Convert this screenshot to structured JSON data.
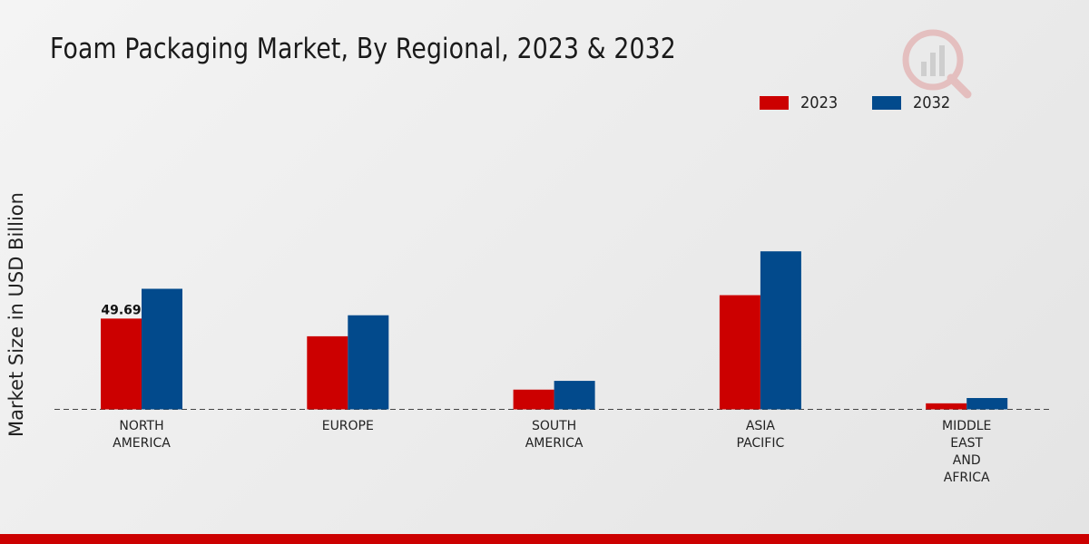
{
  "chart_data": {
    "type": "bar",
    "title": "Foam Packaging Market, By Regional, 2023 & 2032",
    "xlabel": "",
    "ylabel": "Market Size in USD Billion",
    "categories": [
      "NORTH\nAMERICA",
      "EUROPE",
      "SOUTH\nAMERICA",
      "ASIA\nPACIFIC",
      "MIDDLE\nEAST\nAND\nAFRICA"
    ],
    "series": [
      {
        "name": "2023",
        "color": "#cc0000",
        "values": [
          49.69,
          40.0,
          10.8,
          62.5,
          3.3
        ]
      },
      {
        "name": "2032",
        "color": "#024a8c",
        "values": [
          66.0,
          51.5,
          15.6,
          86.5,
          6.2
        ]
      }
    ],
    "data_labels": [
      {
        "series": 0,
        "index": 0,
        "text": "49.69"
      }
    ],
    "ylim": [
      0,
      100
    ],
    "grid": false,
    "legend_position": "top-right"
  },
  "colors": {
    "accent": "#cc0000",
    "series_2023": "#cc0000",
    "series_2032": "#024a8c"
  }
}
